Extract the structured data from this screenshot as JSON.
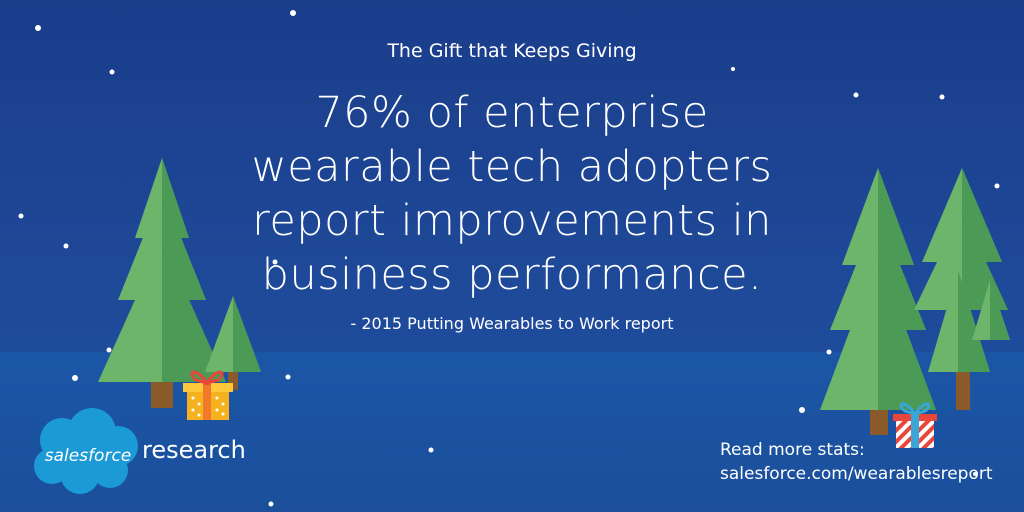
{
  "headline_kicker": "The Gift that Keeps Giving",
  "headline_lines": [
    "76% of enterprise",
    "wearable tech adopters",
    "report improvements in",
    "business performance."
  ],
  "source": "- 2015 Putting Wearables to Work report",
  "brand": {
    "cloud_text": "salesforce",
    "product_text": "research"
  },
  "cta": {
    "line1": "Read more stats:",
    "line2": "salesforce.com/wearablesreport"
  },
  "colors": {
    "sky": "#1a3d8a",
    "ground": "#1b56a6",
    "tree_light": "#6db56a",
    "tree_dark": "#4b9a55",
    "trunk": "#8a5a2b",
    "cloud": "#1b9ad6"
  }
}
